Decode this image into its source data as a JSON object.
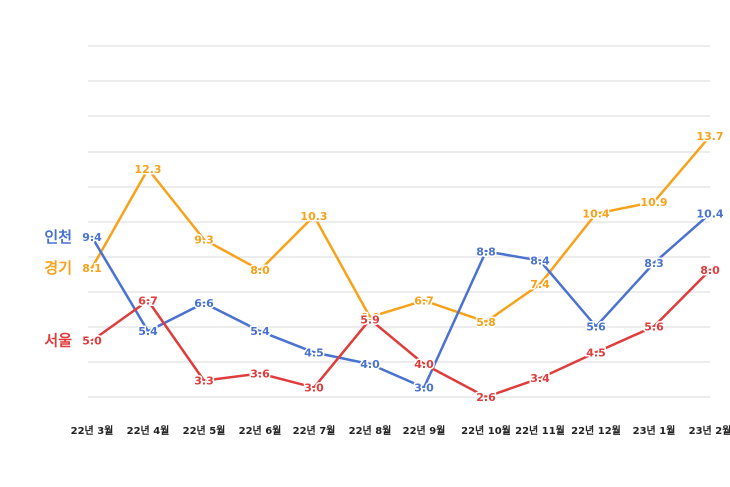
{
  "chart_data": {
    "type": "line",
    "categories": [
      "22년 3월",
      "22년 4월",
      "22년 5월",
      "22년 6월",
      "22년 7월",
      "22년 8월",
      "22년 9월",
      "22년 10월",
      "22년 11월",
      "22년 12월",
      "23년 1월",
      "23년 2월"
    ],
    "series": [
      {
        "name": "경기",
        "color": "#F7A21B",
        "values": [
          8.1,
          12.3,
          9.3,
          8.0,
          10.3,
          6.0,
          6.7,
          5.8,
          7.4,
          10.4,
          10.9,
          13.7
        ]
      },
      {
        "name": "인천",
        "color": "#4A72D1",
        "values": [
          9.4,
          5.4,
          6.6,
          5.4,
          4.5,
          4.0,
          3.0,
          8.8,
          8.4,
          5.6,
          8.3,
          10.4
        ]
      },
      {
        "name": "서울",
        "color": "#E03C3C",
        "values": [
          5.0,
          6.7,
          3.3,
          3.6,
          3.0,
          5.9,
          4.0,
          2.6,
          3.4,
          4.5,
          5.6,
          8.0
        ]
      }
    ],
    "grid": true,
    "legend": "inline-left"
  }
}
